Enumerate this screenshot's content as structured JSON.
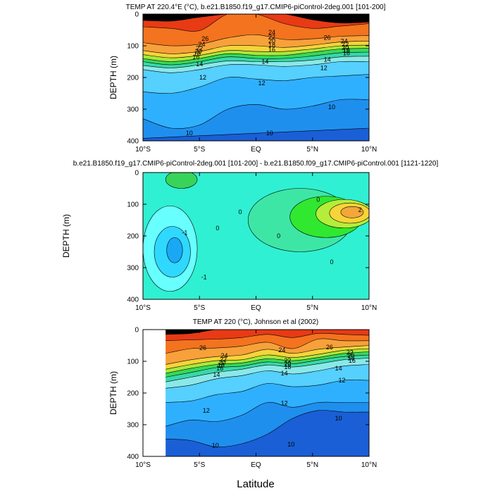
{
  "figure": {
    "xlabel": "Latitude"
  },
  "chart_data": [
    {
      "type": "heatmap",
      "title": "TEMP AT 220.4°E (°C), b.e21.B1850.f19_g17.CMIP6-piControl-2deg.001 [101-200]",
      "ylabel": "DEPTH (m)",
      "xlim": [
        -10,
        10
      ],
      "ylim": [
        400,
        0
      ],
      "x_ticks": [
        -10,
        -5,
        0,
        5,
        10
      ],
      "x_tick_labels": [
        "10°S",
        "5°S",
        "EQ",
        "5°N",
        "10°N"
      ],
      "y_ticks": [
        0,
        100,
        200,
        300,
        400
      ],
      "y_tick_labels": [
        "0",
        "100",
        "200",
        "300",
        "400"
      ],
      "colors": [
        "#1a5fd6",
        "#1f8fee",
        "#2fb0ff",
        "#55d0ff",
        "#8be8e8",
        "#36d9a8",
        "#38d85a",
        "#a8e83a",
        "#f6d43a",
        "#f8a13a",
        "#f3731f",
        "#e83a15"
      ],
      "band_depths": [
        [
          392,
          360
        ],
        [
          330,
          360,
          350,
          300,
          285,
          300,
          290,
          270,
          270
        ],
        [
          245,
          250,
          230,
          200,
          205,
          210,
          200,
          195,
          190
        ],
        [
          175,
          185,
          175,
          160,
          160,
          165,
          160,
          150,
          150
        ],
        [
          162,
          170,
          160,
          148,
          150,
          150,
          145,
          135,
          133
        ],
        [
          150,
          160,
          150,
          135,
          140,
          140,
          132,
          122,
          120
        ],
        [
          140,
          150,
          140,
          125,
          130,
          130,
          120,
          110,
          108
        ],
        [
          128,
          138,
          130,
          115,
          118,
          118,
          110,
          100,
          98
        ],
        [
          115,
          125,
          118,
          100,
          100,
          105,
          98,
          88,
          85
        ],
        [
          90,
          100,
          95,
          75,
          65,
          80,
          78,
          70,
          68
        ],
        [
          40,
          45,
          52,
          0,
          0,
          30,
          45,
          38,
          30
        ],
        [
          20,
          22,
          10,
          0,
          0,
          0,
          18,
          28,
          25
        ]
      ],
      "contour_labels": [
        {
          "text": "26",
          "lat": -4.5,
          "depth": 78
        },
        {
          "text": "24",
          "lat": 1.4,
          "depth": 58
        },
        {
          "text": "22",
          "lat": 1.4,
          "depth": 72
        },
        {
          "text": "20",
          "lat": 1.4,
          "depth": 84
        },
        {
          "text": "18",
          "lat": 1.4,
          "depth": 98
        },
        {
          "text": "16",
          "lat": 1.4,
          "depth": 112
        },
        {
          "text": "24",
          "lat": -4.8,
          "depth": 96
        },
        {
          "text": "22",
          "lat": -5.0,
          "depth": 108
        },
        {
          "text": "20",
          "lat": -5.1,
          "depth": 118
        },
        {
          "text": "18",
          "lat": -5.2,
          "depth": 126
        },
        {
          "text": "16",
          "lat": -5.3,
          "depth": 135
        },
        {
          "text": "14",
          "lat": -5.0,
          "depth": 158
        },
        {
          "text": "12",
          "lat": -4.7,
          "depth": 200
        },
        {
          "text": "14",
          "lat": 0.8,
          "depth": 150
        },
        {
          "text": "12",
          "lat": 0.5,
          "depth": 218
        },
        {
          "text": "26",
          "lat": 6.3,
          "depth": 74
        },
        {
          "text": "24",
          "lat": 7.8,
          "depth": 86
        },
        {
          "text": "22",
          "lat": 7.9,
          "depth": 96
        },
        {
          "text": "20",
          "lat": 7.9,
          "depth": 105
        },
        {
          "text": "18",
          "lat": 8.0,
          "depth": 114
        },
        {
          "text": "16",
          "lat": 8.0,
          "depth": 123
        },
        {
          "text": "14",
          "lat": 6.3,
          "depth": 143
        },
        {
          "text": "12",
          "lat": 6.0,
          "depth": 170
        },
        {
          "text": "10",
          "lat": 6.7,
          "depth": 293
        },
        {
          "text": "10",
          "lat": -5.9,
          "depth": 375
        },
        {
          "text": "10",
          "lat": 1.2,
          "depth": 375
        }
      ]
    },
    {
      "type": "heatmap",
      "title": "b.e21.B1850.f19_g17.CMIP6-piControl-2deg.001 [101-200] - b.e21.B1850.f09_g17.CMIP6-piControl.001 [1121-1220]",
      "ylabel": "DEPTH (m)",
      "xlim": [
        -10,
        10
      ],
      "ylim": [
        400,
        0
      ],
      "x_ticks": [
        -10,
        -5,
        0,
        5,
        10
      ],
      "x_tick_labels": [
        "10°S",
        "5°S",
        "EQ",
        "5°N",
        "10°N"
      ],
      "y_ticks": [
        0,
        100,
        200,
        300,
        400
      ],
      "y_tick_labels": [
        "0",
        "100",
        "200",
        "300",
        "400"
      ],
      "background_color": "#2ff0d2",
      "regions": [
        {
          "color": "#68ffff",
          "lat": -7.6,
          "depth": 240,
          "rx_deg": 2.4,
          "ry_m": 135
        },
        {
          "color": "#2fd8ff",
          "lat": -7.4,
          "depth": 250,
          "rx_deg": 1.6,
          "ry_m": 80
        },
        {
          "color": "#1aa8f5",
          "lat": -7.2,
          "depth": 245,
          "rx_deg": 0.7,
          "ry_m": 40
        },
        {
          "color": "#3ee6a6",
          "lat": 3.9,
          "depth": 150,
          "rx_deg": 4.6,
          "ry_m": 100
        },
        {
          "color": "#38d45a",
          "lat": -6.6,
          "depth": 22,
          "rx_deg": 1.4,
          "ry_m": 28
        },
        {
          "color": "#30e830",
          "lat": 6.2,
          "depth": 140,
          "rx_deg": 3.2,
          "ry_m": 65
        },
        {
          "color": "#b4ee3a",
          "lat": 7.8,
          "depth": 130,
          "rx_deg": 2.5,
          "ry_m": 45
        },
        {
          "color": "#f6d43a",
          "lat": 8.3,
          "depth": 128,
          "rx_deg": 1.8,
          "ry_m": 32
        },
        {
          "color": "#f3a63a",
          "lat": 8.5,
          "depth": 125,
          "rx_deg": 1.0,
          "ry_m": 18
        }
      ],
      "contour_labels": [
        {
          "text": "-1",
          "lat": -6.3,
          "depth": 190
        },
        {
          "text": "-1",
          "lat": -4.6,
          "depth": 330
        },
        {
          "text": "0",
          "lat": -3.4,
          "depth": 175
        },
        {
          "text": "0",
          "lat": -1.4,
          "depth": 124
        },
        {
          "text": "0",
          "lat": 2.0,
          "depth": 200
        },
        {
          "text": "0",
          "lat": 5.5,
          "depth": 85
        },
        {
          "text": "0",
          "lat": 6.7,
          "depth": 282
        },
        {
          "text": "2",
          "lat": 9.2,
          "depth": 118
        }
      ]
    },
    {
      "type": "heatmap",
      "title": "TEMP AT 220 (°C), Johnson et al (2002)",
      "ylabel": "DEPTH (m)",
      "xlim": [
        -10,
        10
      ],
      "ylim": [
        400,
        0
      ],
      "data_lat_min": -8,
      "x_ticks": [
        -10,
        -5,
        0,
        5,
        10
      ],
      "x_tick_labels": [
        "10°S",
        "5°S",
        "EQ",
        "5°N",
        "10°N"
      ],
      "y_ticks": [
        0,
        100,
        200,
        300,
        400
      ],
      "y_tick_labels": [
        "0",
        "100",
        "200",
        "300",
        "400"
      ],
      "colors": [
        "#1a5fd6",
        "#1f8fee",
        "#2fb0ff",
        "#55d0ff",
        "#8be8e8",
        "#36d9a8",
        "#38d85a",
        "#a8e83a",
        "#f6d43a",
        "#f8a13a",
        "#f3731f",
        "#e83a15"
      ],
      "band_depths": [
        [
          345,
          350,
          370,
          360,
          330,
          280,
          255,
          260,
          260
        ],
        [
          305,
          285,
          290,
          270,
          230,
          245,
          230,
          230,
          230
        ],
        [
          230,
          225,
          205,
          195,
          170,
          180,
          175,
          160,
          160
        ],
        [
          185,
          175,
          155,
          145,
          130,
          140,
          130,
          115,
          110
        ],
        [
          165,
          150,
          135,
          125,
          112,
          118,
          108,
          95,
          90
        ],
        [
          150,
          135,
          120,
          115,
          102,
          108,
          96,
          85,
          80
        ],
        [
          138,
          122,
          110,
          105,
          92,
          98,
          88,
          75,
          70
        ],
        [
          125,
          110,
          98,
          95,
          80,
          88,
          78,
          65,
          60
        ],
        [
          110,
          95,
          85,
          80,
          62,
          75,
          62,
          55,
          50
        ],
        [
          75,
          60,
          58,
          52,
          40,
          60,
          30,
          35,
          35
        ],
        [
          35,
          32,
          30,
          25,
          15,
          25,
          12,
          15,
          18
        ],
        [
          15,
          12,
          0,
          0,
          0,
          0,
          0,
          0,
          0
        ]
      ],
      "contour_labels": [
        {
          "text": "26",
          "lat": -4.7,
          "depth": 58
        },
        {
          "text": "24",
          "lat": -2.8,
          "depth": 82
        },
        {
          "text": "22",
          "lat": -2.9,
          "depth": 94
        },
        {
          "text": "20",
          "lat": -3.0,
          "depth": 104
        },
        {
          "text": "18",
          "lat": -3.1,
          "depth": 112
        },
        {
          "text": "16",
          "lat": -3.2,
          "depth": 122
        },
        {
          "text": "14",
          "lat": -3.5,
          "depth": 142
        },
        {
          "text": "24",
          "lat": 2.3,
          "depth": 64
        },
        {
          "text": "22",
          "lat": 2.8,
          "depth": 98
        },
        {
          "text": "20",
          "lat": 2.8,
          "depth": 108
        },
        {
          "text": "18",
          "lat": 2.8,
          "depth": 118
        },
        {
          "text": "14",
          "lat": 2.5,
          "depth": 138
        },
        {
          "text": "26",
          "lat": 6.5,
          "depth": 56
        },
        {
          "text": "22",
          "lat": 8.3,
          "depth": 72
        },
        {
          "text": "20",
          "lat": 8.4,
          "depth": 82
        },
        {
          "text": "18",
          "lat": 8.4,
          "depth": 90
        },
        {
          "text": "16",
          "lat": 8.5,
          "depth": 98
        },
        {
          "text": "14",
          "lat": 7.3,
          "depth": 122
        },
        {
          "text": "12",
          "lat": 7.6,
          "depth": 160
        },
        {
          "text": "12",
          "lat": -4.4,
          "depth": 255
        },
        {
          "text": "12",
          "lat": 2.5,
          "depth": 232
        },
        {
          "text": "10",
          "lat": 7.3,
          "depth": 280
        },
        {
          "text": "10",
          "lat": -3.6,
          "depth": 365
        },
        {
          "text": "10",
          "lat": 3.1,
          "depth": 362
        }
      ]
    }
  ]
}
